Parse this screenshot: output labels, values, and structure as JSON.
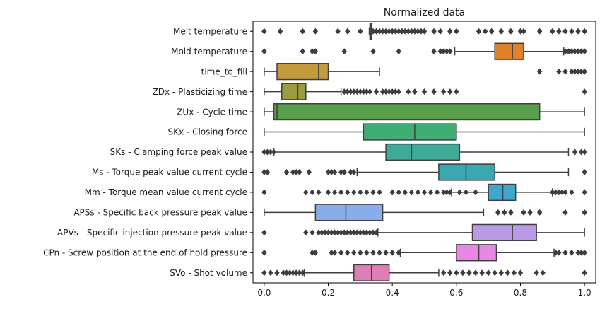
{
  "chart_data": {
    "type": "boxplot",
    "orientation": "horizontal",
    "title": "Normalized data",
    "xlabel": "",
    "ylabel": "",
    "xlim": [
      -0.035,
      1.035
    ],
    "xticks": [
      0.0,
      0.2,
      0.4,
      0.6,
      0.8,
      1.0
    ],
    "xtick_labels": [
      "0.0",
      "0.2",
      "0.4",
      "0.6",
      "0.8",
      "1.0"
    ],
    "grid": false,
    "series": [
      {
        "label": "Melt temperature",
        "color": "#3274a1",
        "whisker_low": 0.328,
        "q1": 0.33,
        "median": 0.332,
        "q3": 0.334,
        "whisker_high": 0.336,
        "outliers": [
          0.0,
          0.05,
          0.12,
          0.16,
          0.23,
          0.26,
          0.3,
          0.34,
          0.35,
          0.36,
          0.37,
          0.38,
          0.39,
          0.4,
          0.41,
          0.42,
          0.43,
          0.44,
          0.45,
          0.46,
          0.47,
          0.48,
          0.49,
          0.5,
          0.53,
          0.55,
          0.58,
          0.6,
          0.67,
          0.69,
          0.71,
          0.74,
          0.77,
          0.8,
          0.81,
          0.86,
          0.9,
          0.92,
          0.94,
          0.96,
          0.98,
          1.0
        ]
      },
      {
        "label": "Mold temperature",
        "color": "#e1812c",
        "whisker_low": 0.595,
        "q1": 0.72,
        "median": 0.775,
        "q3": 0.81,
        "whisker_high": 0.935,
        "outliers": [
          0.0,
          0.12,
          0.15,
          0.16,
          0.25,
          0.34,
          0.42,
          0.53,
          0.55,
          0.56,
          0.57,
          0.58,
          0.94,
          0.95,
          0.96,
          0.97,
          0.98,
          0.99,
          1.0
        ]
      },
      {
        "label": "time_to_fill",
        "color": "#c29b3f",
        "whisker_low": 0.0,
        "q1": 0.04,
        "median": 0.17,
        "q3": 0.2,
        "whisker_high": 0.36,
        "outliers": [
          0.86,
          0.92,
          0.94,
          0.96,
          0.97,
          0.98,
          0.99,
          1.0
        ]
      },
      {
        "label": "ZDx - Plasticizing time",
        "color": "#9a9c3e",
        "whisker_low": 0.0,
        "q1": 0.055,
        "median": 0.105,
        "q3": 0.13,
        "whisker_high": 0.24,
        "outliers": [
          0.25,
          0.26,
          0.27,
          0.28,
          0.29,
          0.3,
          0.31,
          0.32,
          0.33,
          0.35,
          0.37,
          0.38,
          0.39,
          0.4,
          0.41,
          0.42,
          0.45,
          0.47,
          0.5,
          0.53,
          0.56,
          0.58,
          0.6,
          1.0
        ]
      },
      {
        "label": "ZUx - Cycle time",
        "color": "#5aa04c",
        "whisker_low": 0.0,
        "q1": 0.03,
        "median": 0.04,
        "q3": 0.86,
        "whisker_high": 1.0,
        "outliers": []
      },
      {
        "label": "SKx - Closing force",
        "color": "#3eae74",
        "whisker_low": 0.0,
        "q1": 0.31,
        "median": 0.47,
        "q3": 0.6,
        "whisker_high": 1.0,
        "outliers": []
      },
      {
        "label": "SKs - Clamping force peak value",
        "color": "#3eaa98",
        "whisker_low": 0.03,
        "q1": 0.38,
        "median": 0.46,
        "q3": 0.61,
        "whisker_high": 0.95,
        "outliers": [
          0.0,
          0.01,
          0.02,
          0.03,
          0.97,
          0.99,
          1.0
        ]
      },
      {
        "label": "Ms - Torque peak value current cycle",
        "color": "#3aa8b0",
        "whisker_low": 0.29,
        "q1": 0.545,
        "median": 0.63,
        "q3": 0.72,
        "whisker_high": 0.95,
        "outliers": [
          0.0,
          0.01,
          0.07,
          0.09,
          0.1,
          0.11,
          0.14,
          0.2,
          0.21,
          0.22,
          0.24,
          0.25,
          0.27,
          0.28,
          1.0
        ]
      },
      {
        "label": "Mm - Torque mean value current cycle",
        "color": "#3ca8d0",
        "whisker_low": 0.585,
        "q1": 0.7,
        "median": 0.745,
        "q3": 0.785,
        "whisker_high": 0.9,
        "outliers": [
          0.0,
          0.13,
          0.15,
          0.17,
          0.2,
          0.22,
          0.24,
          0.26,
          0.28,
          0.3,
          0.32,
          0.34,
          0.36,
          0.4,
          0.42,
          0.44,
          0.46,
          0.48,
          0.5,
          0.52,
          0.54,
          0.56,
          0.57,
          0.58,
          0.61,
          0.63,
          0.66,
          0.9,
          0.91,
          0.92,
          0.93,
          0.94,
          0.96,
          1.0
        ]
      },
      {
        "label": "APSs - Specific back pressure peak value",
        "color": "#8bacea",
        "whisker_low": 0.0,
        "q1": 0.16,
        "median": 0.255,
        "q3": 0.37,
        "whisker_high": 0.685,
        "outliers": [
          0.73,
          0.75,
          0.77,
          0.81,
          0.83,
          0.86,
          0.94,
          1.0
        ]
      },
      {
        "label": "APVs - Specific injection pressure peak value",
        "color": "#b89ae6",
        "whisker_low": 0.355,
        "q1": 0.65,
        "median": 0.775,
        "q3": 0.85,
        "whisker_high": 1.0,
        "outliers": [
          0.0,
          0.13,
          0.15,
          0.17,
          0.18,
          0.19,
          0.2,
          0.21,
          0.22,
          0.23,
          0.24,
          0.25,
          0.26,
          0.27,
          0.28,
          0.29,
          0.3,
          0.31,
          0.32,
          0.33,
          0.34,
          0.35
        ]
      },
      {
        "label": "CPn - Screw position at the end of hold pressure",
        "color": "#e587e3",
        "whisker_low": 0.425,
        "q1": 0.6,
        "median": 0.67,
        "q3": 0.725,
        "whisker_high": 0.905,
        "outliers": [
          0.0,
          0.15,
          0.16,
          0.21,
          0.22,
          0.24,
          0.26,
          0.28,
          0.3,
          0.32,
          0.34,
          0.36,
          0.38,
          0.4,
          0.42,
          0.91,
          0.92,
          0.94,
          0.96,
          0.98,
          0.99,
          1.0
        ]
      },
      {
        "label": "SVo - Shot volume",
        "color": "#e07fb5",
        "whisker_low": 0.125,
        "q1": 0.28,
        "median": 0.335,
        "q3": 0.39,
        "whisker_high": 0.545,
        "outliers": [
          0.0,
          0.02,
          0.04,
          0.06,
          0.07,
          0.08,
          0.09,
          0.1,
          0.11,
          0.12,
          0.56,
          0.58,
          0.6,
          0.62,
          0.64,
          0.66,
          0.68,
          0.7,
          0.72,
          0.74,
          0.76,
          0.78,
          0.8,
          0.85,
          0.87,
          1.0
        ]
      }
    ]
  }
}
